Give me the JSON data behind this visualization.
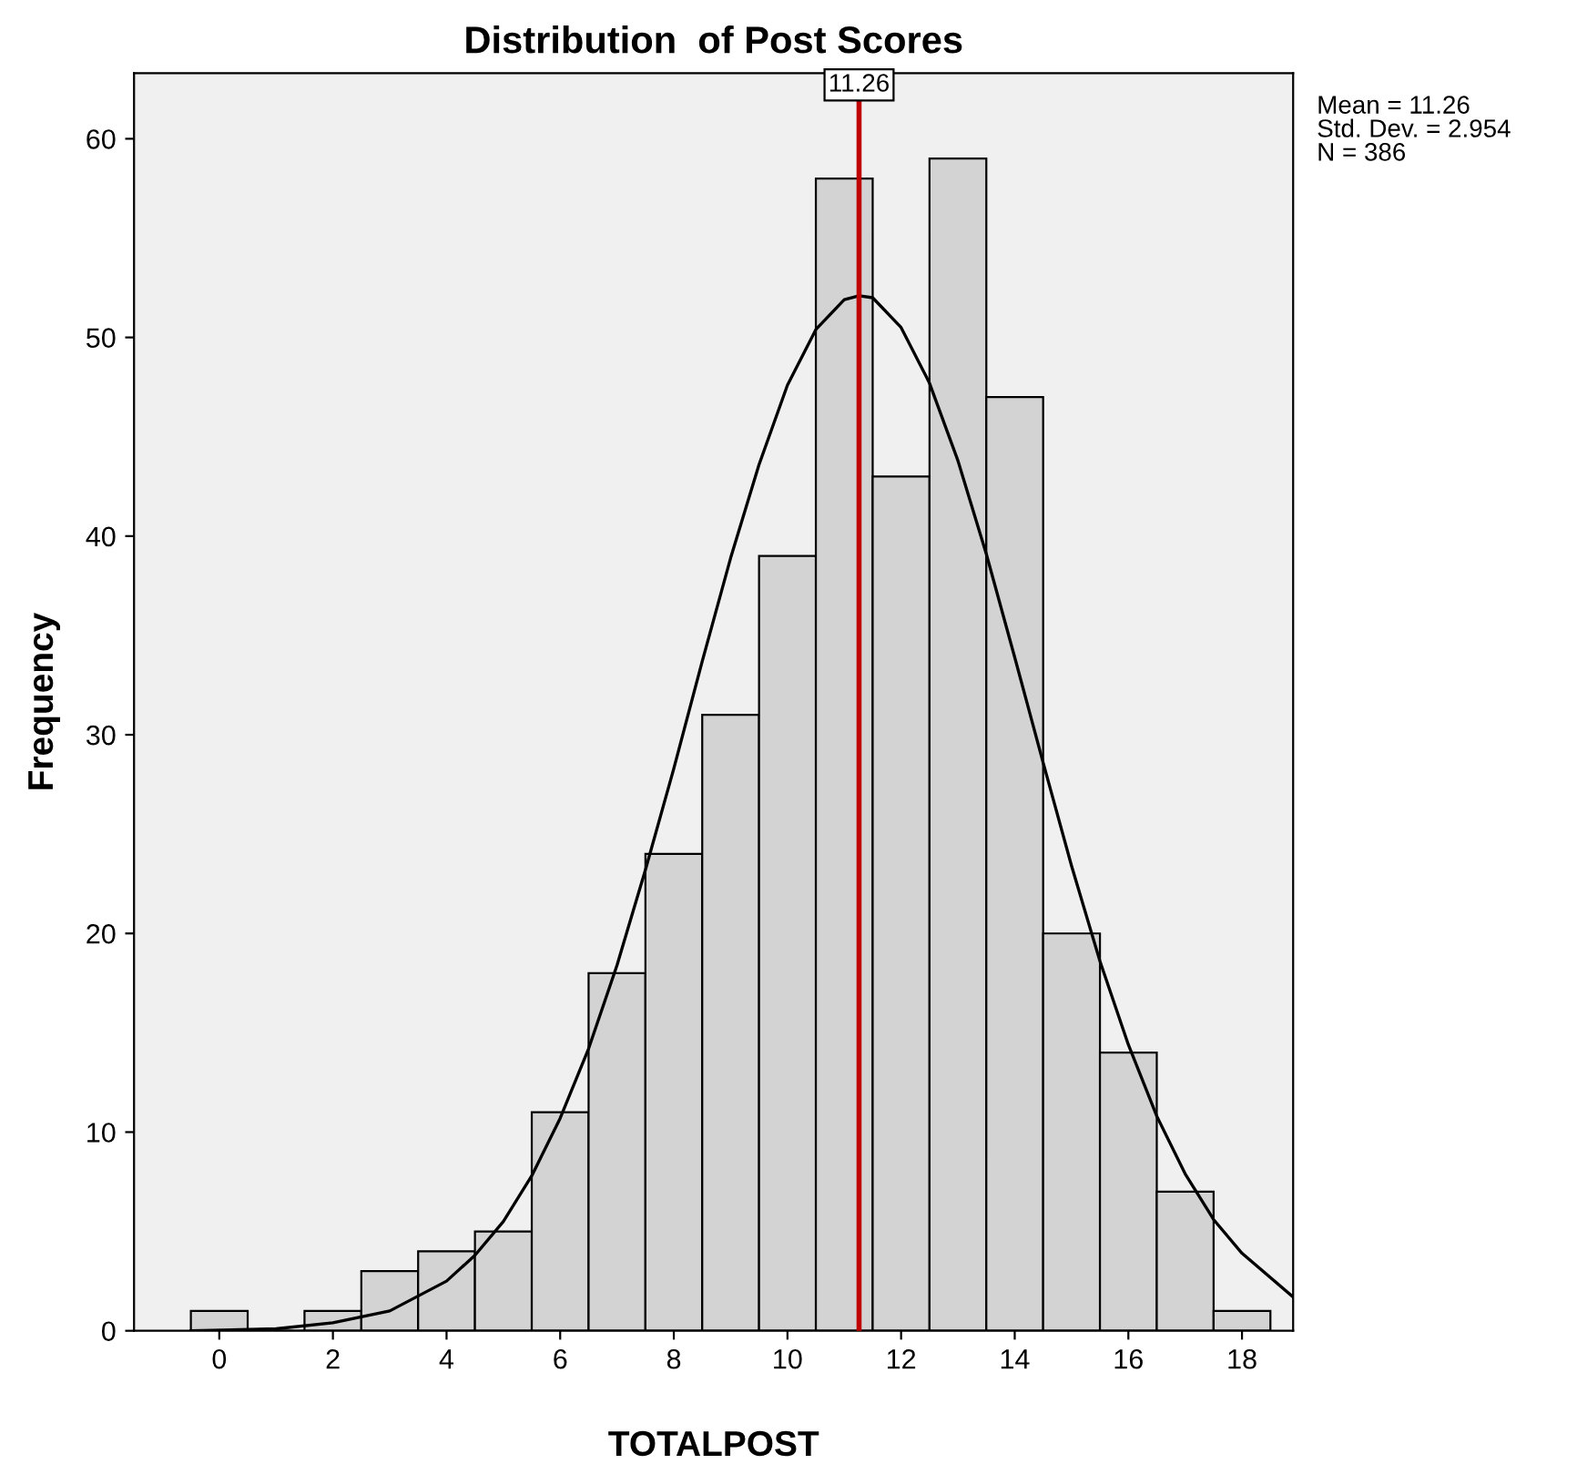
{
  "chart_data": {
    "type": "histogram",
    "title": "Distribution  of Post Scores",
    "xlabel": "TOTALPOST",
    "ylabel": "Frequency",
    "bins": [
      -0.5,
      0.5,
      1.5,
      2.5,
      3.5,
      4.5,
      5.5,
      6.5,
      7.5,
      8.5,
      9.5,
      10.5,
      11.5,
      12.5,
      13.5,
      14.5,
      15.5,
      16.5,
      17.5,
      18.5
    ],
    "values": [
      1,
      0,
      1,
      3,
      4,
      5,
      11,
      18,
      24,
      31,
      39,
      58,
      43,
      59,
      47,
      20,
      14,
      7,
      1
    ],
    "color": "#d3d3d3",
    "series": [
      {
        "type": "line",
        "color": "#000000",
        "x": [
          -0.5,
          1,
          2,
          3,
          4,
          4.5,
          5,
          5.5,
          6,
          6.5,
          7,
          7.5,
          8,
          8.5,
          9,
          9.5,
          10,
          10.5,
          11,
          11.26,
          11.5,
          12,
          12.5,
          13,
          13.5,
          14,
          14.5,
          15,
          15.5,
          16,
          16.5,
          17,
          17.5,
          18,
          18.9
        ],
        "values": [
          0,
          0.1,
          0.4,
          1.0,
          2.5,
          3.8,
          5.5,
          7.8,
          10.7,
          14.2,
          18.4,
          23.2,
          28.3,
          33.7,
          38.9,
          43.6,
          47.6,
          50.4,
          51.9,
          52.1,
          52.0,
          50.5,
          47.7,
          43.8,
          39.1,
          33.9,
          28.6,
          23.4,
          18.6,
          14.4,
          10.8,
          7.9,
          5.6,
          3.9,
          1.7
        ]
      }
    ],
    "ref_lines": [
      {
        "axis": "x",
        "value": 11.26,
        "label": "11.26",
        "color": "#c00000"
      }
    ],
    "annotations": [
      "Mean = 11.26\nStd. Dev. = 2.954\nN = 386"
    ],
    "xlim": [
      -1.5,
      18.9
    ],
    "ylim": [
      0,
      63.3
    ],
    "xticks": [
      0,
      2,
      4,
      6,
      8,
      10,
      12,
      14,
      16,
      18
    ],
    "yticks": [
      0,
      10,
      20,
      30,
      40,
      50,
      60
    ],
    "grid": false,
    "legend": false
  }
}
